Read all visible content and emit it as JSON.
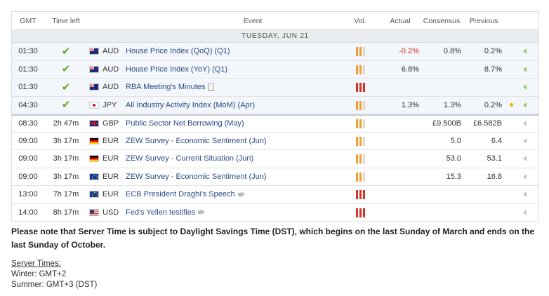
{
  "headers": {
    "gmt": "GMT",
    "time_left": "Time left",
    "event": "Event",
    "vol": "Vol.",
    "actual": "Actual",
    "consensus": "Consensus",
    "previous": "Previous"
  },
  "day_label": "TUESDAY, JUN 21",
  "rows": [
    {
      "gmt": "01:30",
      "time_left": "",
      "done": true,
      "currency": "AUD",
      "flag": "aud",
      "event": "House Price Index (QoQ) (Q1)",
      "vol": "medium",
      "actual": "-0.2%",
      "actual_color": "#d62b2b",
      "consensus": "0.8%",
      "previous": "0.2%"
    },
    {
      "gmt": "01:30",
      "time_left": "",
      "done": true,
      "currency": "AUD",
      "flag": "aud",
      "event": "House Price Index (YoY) (Q1)",
      "vol": "medium",
      "actual": "6.8%",
      "consensus": "",
      "previous": "8.7%"
    },
    {
      "gmt": "01:30",
      "time_left": "",
      "done": true,
      "currency": "AUD",
      "flag": "aud",
      "event": "RBA Meeting's Minutes",
      "event_icon": "document-icon",
      "vol": "high",
      "actual": "",
      "consensus": "",
      "previous": ""
    },
    {
      "gmt": "04:30",
      "time_left": "",
      "done": true,
      "currency": "JPY",
      "flag": "jpy",
      "event": "All Industry Activity Index (MoM) (Apr)",
      "vol": "medium",
      "actual": "1.3%",
      "consensus": "1.3%",
      "previous": "0.2%",
      "marker": "yellow-dot"
    },
    {
      "gmt": "08:30",
      "time_left": "2h 47m",
      "done": false,
      "currency": "GBP",
      "flag": "gbp",
      "event": "Public Sector Net Borrowing (May)",
      "vol": "medium",
      "actual": "",
      "consensus": "£9.500B",
      "previous": "£6.582B"
    },
    {
      "gmt": "09:00",
      "time_left": "3h 17m",
      "done": false,
      "currency": "EUR",
      "flag": "de",
      "event": "ZEW Survey - Economic Sentiment (Jun)",
      "vol": "medium",
      "actual": "",
      "consensus": "5.0",
      "previous": "6.4"
    },
    {
      "gmt": "09:00",
      "time_left": "3h 17m",
      "done": false,
      "currency": "EUR",
      "flag": "de",
      "event": "ZEW Survey - Current Situation (Jun)",
      "vol": "medium",
      "actual": "",
      "consensus": "53.0",
      "previous": "53.1"
    },
    {
      "gmt": "09:00",
      "time_left": "3h 17m",
      "done": false,
      "currency": "EUR",
      "flag": "eu",
      "event": "ZEW Survey - Economic Sentiment (Jun)",
      "vol": "medium",
      "actual": "",
      "consensus": "15.3",
      "previous": "16.8"
    },
    {
      "gmt": "13:00",
      "time_left": "7h 17m",
      "done": false,
      "currency": "EUR",
      "flag": "eu",
      "event": "ECB President Draghi's Speech",
      "event_icon": "speech-icon",
      "vol": "high",
      "actual": "",
      "consensus": "",
      "previous": ""
    },
    {
      "gmt": "14:00",
      "time_left": "8h 17m",
      "done": false,
      "currency": "USD",
      "flag": "us",
      "event": "Fed's Yellen testifies",
      "event_icon": "speech-icon",
      "vol": "high",
      "actual": "",
      "consensus": "",
      "previous": ""
    }
  ],
  "note": "Please note that Server Time is subject to Daylight Savings Time (DST), which begins on the last Sunday of March and ends on the last Sunday of October.",
  "server_times": {
    "title": "Server Times:",
    "winter": "Winter: GMT+2",
    "summer": "Summer: GMT+3 (DST)"
  },
  "colors": {
    "link": "#2b4a86",
    "negative": "#d62b2b",
    "check": "#6aa82c",
    "vol_high": "#d63228",
    "vol_medium": "#f39c32"
  }
}
